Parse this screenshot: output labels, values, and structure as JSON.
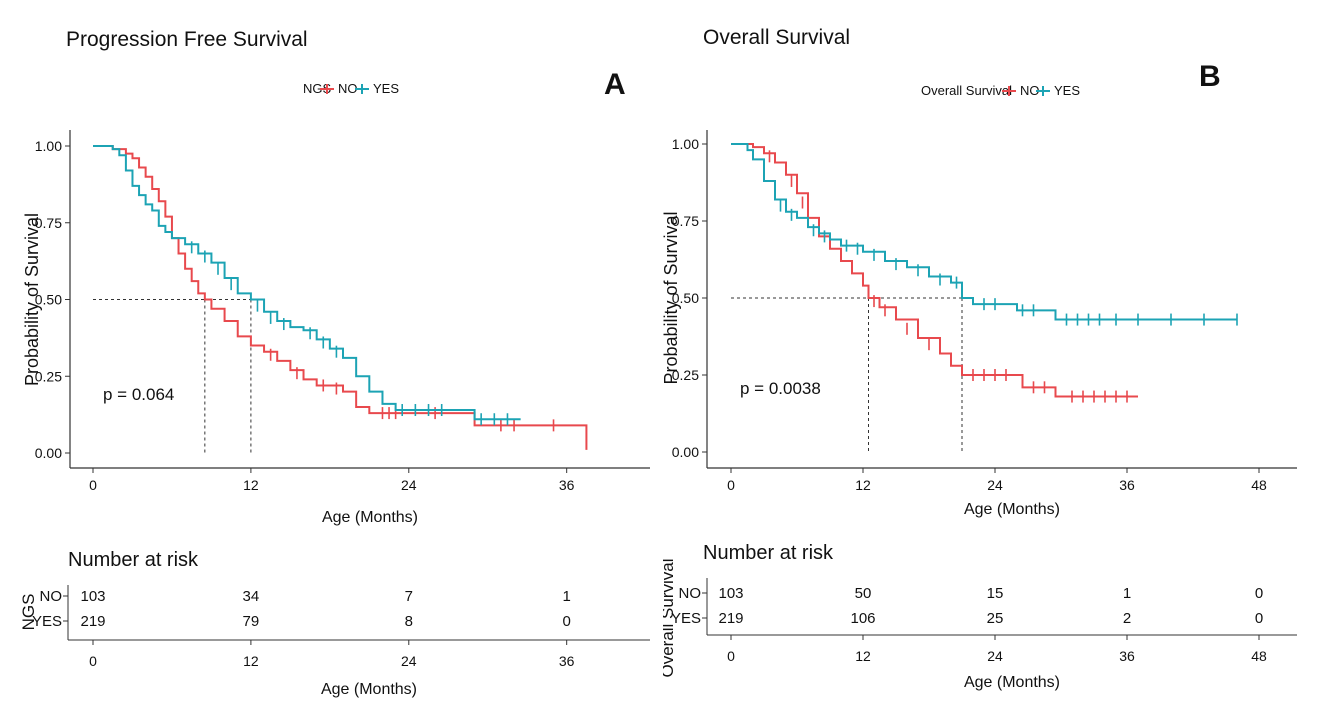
{
  "panels": [
    {
      "id": "A",
      "title": "Progression Free Survival",
      "letter": "A",
      "legend_title": "NGS",
      "pvalue": "p = 0.064",
      "risk_title": "Number at risk",
      "risk_ylabel": "NGS",
      "colors": {
        "NO": "#e8494d",
        "YES": "#1ca3b4"
      },
      "chart_data": {
        "type": "line",
        "xlabel": "Age (Months)",
        "ylabel": "Probability of Survival",
        "xlim": [
          0,
          38
        ],
        "ylim": [
          0,
          1
        ],
        "xticks": [
          0,
          12,
          24,
          36
        ],
        "yticks": [
          0,
          0.25,
          0.5,
          0.75,
          1
        ],
        "ytick_labels": [
          "0.00",
          "0.25",
          "0.50",
          "0.75",
          "1.00"
        ],
        "median_line": 0.5,
        "series": [
          {
            "name": "NO",
            "points": [
              [
                0,
                1
              ],
              [
                1.5,
                0.99
              ],
              [
                2.5,
                0.975
              ],
              [
                3,
                0.96
              ],
              [
                3.5,
                0.93
              ],
              [
                4,
                0.9
              ],
              [
                4.5,
                0.86
              ],
              [
                5,
                0.82
              ],
              [
                5.5,
                0.77
              ],
              [
                6,
                0.7
              ],
              [
                6.5,
                0.65
              ],
              [
                7,
                0.6
              ],
              [
                7.5,
                0.56
              ],
              [
                8,
                0.52
              ],
              [
                8.5,
                0.5
              ],
              [
                9,
                0.47
              ],
              [
                10,
                0.43
              ],
              [
                11,
                0.38
              ],
              [
                12,
                0.35
              ],
              [
                13,
                0.33
              ],
              [
                14,
                0.3
              ],
              [
                15,
                0.27
              ],
              [
                16,
                0.24
              ],
              [
                17,
                0.22
              ],
              [
                18,
                0.22
              ],
              [
                19,
                0.2
              ],
              [
                20,
                0.15
              ],
              [
                21,
                0.13
              ],
              [
                24,
                0.13
              ],
              [
                29,
                0.13
              ],
              [
                29,
                0.09
              ],
              [
                37.5,
                0.09
              ],
              [
                37.5,
                0.01
              ]
            ],
            "censor": [
              [
                13.5,
                0.32
              ],
              [
                15.5,
                0.26
              ],
              [
                17.5,
                0.22
              ],
              [
                18.5,
                0.21
              ],
              [
                22,
                0.13
              ],
              [
                22.5,
                0.13
              ],
              [
                23,
                0.13
              ],
              [
                26,
                0.13
              ],
              [
                31,
                0.09
              ],
              [
                32,
                0.09
              ],
              [
                35,
                0.09
              ]
            ]
          },
          {
            "name": "YES",
            "points": [
              [
                0,
                1
              ],
              [
                1.5,
                0.99
              ],
              [
                2,
                0.97
              ],
              [
                2.5,
                0.92
              ],
              [
                3,
                0.87
              ],
              [
                3.5,
                0.84
              ],
              [
                4,
                0.81
              ],
              [
                4.5,
                0.79
              ],
              [
                5,
                0.74
              ],
              [
                5.5,
                0.72
              ],
              [
                6,
                0.7
              ],
              [
                7,
                0.68
              ],
              [
                8,
                0.65
              ],
              [
                9,
                0.62
              ],
              [
                10,
                0.57
              ],
              [
                11,
                0.52
              ],
              [
                12,
                0.5
              ],
              [
                13,
                0.46
              ],
              [
                14,
                0.43
              ],
              [
                15,
                0.41
              ],
              [
                16,
                0.4
              ],
              [
                17,
                0.37
              ],
              [
                18,
                0.34
              ],
              [
                19,
                0.31
              ],
              [
                20,
                0.25
              ],
              [
                21,
                0.2
              ],
              [
                22,
                0.16
              ],
              [
                23,
                0.14
              ],
              [
                29,
                0.14
              ],
              [
                29,
                0.11
              ],
              [
                32,
                0.11
              ],
              [
                32.5,
                0.11
              ]
            ],
            "censor": [
              [
                7.5,
                0.67
              ],
              [
                8.5,
                0.64
              ],
              [
                9.5,
                0.6
              ],
              [
                10.5,
                0.55
              ],
              [
                12.5,
                0.48
              ],
              [
                13.5,
                0.44
              ],
              [
                14.5,
                0.42
              ],
              [
                16.5,
                0.39
              ],
              [
                17.5,
                0.36
              ],
              [
                18.5,
                0.33
              ],
              [
                23.5,
                0.14
              ],
              [
                24.5,
                0.14
              ],
              [
                25.5,
                0.14
              ],
              [
                26.5,
                0.14
              ],
              [
                29.5,
                0.11
              ],
              [
                30.5,
                0.11
              ],
              [
                31.5,
                0.11
              ]
            ]
          }
        ]
      },
      "risk_table": {
        "rows": [
          {
            "group": "NO",
            "values": [
              "103",
              "34",
              "7",
              "1"
            ]
          },
          {
            "group": "YES",
            "values": [
              "219",
              "79",
              "8",
              "0"
            ]
          }
        ],
        "times": [
          0,
          12,
          24,
          36
        ],
        "xlabel": "Age (Months)",
        "xticks": [
          "0",
          "12",
          "24",
          "36"
        ]
      }
    },
    {
      "id": "B",
      "title": "Overall Survival",
      "letter": "B",
      "legend_title": "Overall Survival",
      "pvalue": "p = 0.0038",
      "risk_title": "Number at risk",
      "risk_ylabel": "Overall Survival",
      "colors": {
        "NO": "#e8494d",
        "YES": "#1ca3b4"
      },
      "chart_data": {
        "type": "line",
        "xlabel": "Age (Months)",
        "ylabel": "Probability of Survival",
        "xlim": [
          0,
          48
        ],
        "ylim": [
          0,
          1
        ],
        "xticks": [
          0,
          12,
          24,
          36,
          48
        ],
        "yticks": [
          0,
          0.25,
          0.5,
          0.75,
          1
        ],
        "ytick_labels": [
          "0.00",
          "0.25",
          "0.50",
          "0.75",
          "1.00"
        ],
        "median_line": 0.5,
        "series": [
          {
            "name": "NO",
            "points": [
              [
                0,
                1
              ],
              [
                2,
                0.99
              ],
              [
                3,
                0.97
              ],
              [
                4,
                0.94
              ],
              [
                5,
                0.9
              ],
              [
                6,
                0.84
              ],
              [
                7,
                0.76
              ],
              [
                8,
                0.7
              ],
              [
                9,
                0.66
              ],
              [
                10,
                0.62
              ],
              [
                11,
                0.58
              ],
              [
                12,
                0.54
              ],
              [
                12.5,
                0.5
              ],
              [
                13.5,
                0.47
              ],
              [
                15,
                0.43
              ],
              [
                17,
                0.37
              ],
              [
                19,
                0.32
              ],
              [
                20,
                0.28
              ],
              [
                21,
                0.25
              ],
              [
                26,
                0.25
              ],
              [
                26.5,
                0.21
              ],
              [
                29,
                0.21
              ],
              [
                29.5,
                0.18
              ],
              [
                37,
                0.18
              ]
            ],
            "censor": [
              [
                3.5,
                0.96
              ],
              [
                5.5,
                0.88
              ],
              [
                6.5,
                0.81
              ],
              [
                13,
                0.49
              ],
              [
                14,
                0.46
              ],
              [
                16,
                0.4
              ],
              [
                18,
                0.35
              ],
              [
                22,
                0.25
              ],
              [
                23,
                0.25
              ],
              [
                24,
                0.25
              ],
              [
                25,
                0.25
              ],
              [
                27.5,
                0.21
              ],
              [
                28.5,
                0.21
              ],
              [
                31,
                0.18
              ],
              [
                32,
                0.18
              ],
              [
                33,
                0.18
              ],
              [
                34,
                0.18
              ],
              [
                35,
                0.18
              ],
              [
                36,
                0.18
              ]
            ]
          },
          {
            "name": "YES",
            "points": [
              [
                0,
                1
              ],
              [
                1.5,
                0.98
              ],
              [
                2,
                0.95
              ],
              [
                3,
                0.88
              ],
              [
                4,
                0.82
              ],
              [
                5,
                0.78
              ],
              [
                6,
                0.76
              ],
              [
                7,
                0.73
              ],
              [
                8,
                0.71
              ],
              [
                9,
                0.69
              ],
              [
                10,
                0.67
              ],
              [
                12,
                0.65
              ],
              [
                14,
                0.62
              ],
              [
                16,
                0.6
              ],
              [
                18,
                0.57
              ],
              [
                20,
                0.55
              ],
              [
                21,
                0.5
              ],
              [
                22,
                0.48
              ],
              [
                25,
                0.48
              ],
              [
                26,
                0.46
              ],
              [
                29,
                0.46
              ],
              [
                29.5,
                0.43
              ],
              [
                46,
                0.43
              ]
            ],
            "censor": [
              [
                4.5,
                0.8
              ],
              [
                5.5,
                0.77
              ],
              [
                7.5,
                0.72
              ],
              [
                8.5,
                0.7
              ],
              [
                10.5,
                0.67
              ],
              [
                11.5,
                0.66
              ],
              [
                13,
                0.64
              ],
              [
                15,
                0.61
              ],
              [
                17,
                0.59
              ],
              [
                19,
                0.56
              ],
              [
                20.5,
                0.55
              ],
              [
                23,
                0.48
              ],
              [
                24,
                0.48
              ],
              [
                26.5,
                0.46
              ],
              [
                27.5,
                0.46
              ],
              [
                30.5,
                0.43
              ],
              [
                31.5,
                0.43
              ],
              [
                32.5,
                0.43
              ],
              [
                33.5,
                0.43
              ],
              [
                35,
                0.43
              ],
              [
                37,
                0.43
              ],
              [
                40,
                0.43
              ],
              [
                43,
                0.43
              ],
              [
                46,
                0.43
              ]
            ]
          }
        ]
      },
      "risk_table": {
        "rows": [
          {
            "group": "NO",
            "values": [
              "103",
              "50",
              "15",
              "1",
              "0"
            ]
          },
          {
            "group": "YES",
            "values": [
              "219",
              "106",
              "25",
              "2",
              "0"
            ]
          }
        ],
        "times": [
          0,
          12,
          24,
          36,
          48
        ],
        "xlabel": "Age (Months)",
        "xticks": [
          "0",
          "12",
          "24",
          "36",
          "48"
        ]
      }
    }
  ]
}
